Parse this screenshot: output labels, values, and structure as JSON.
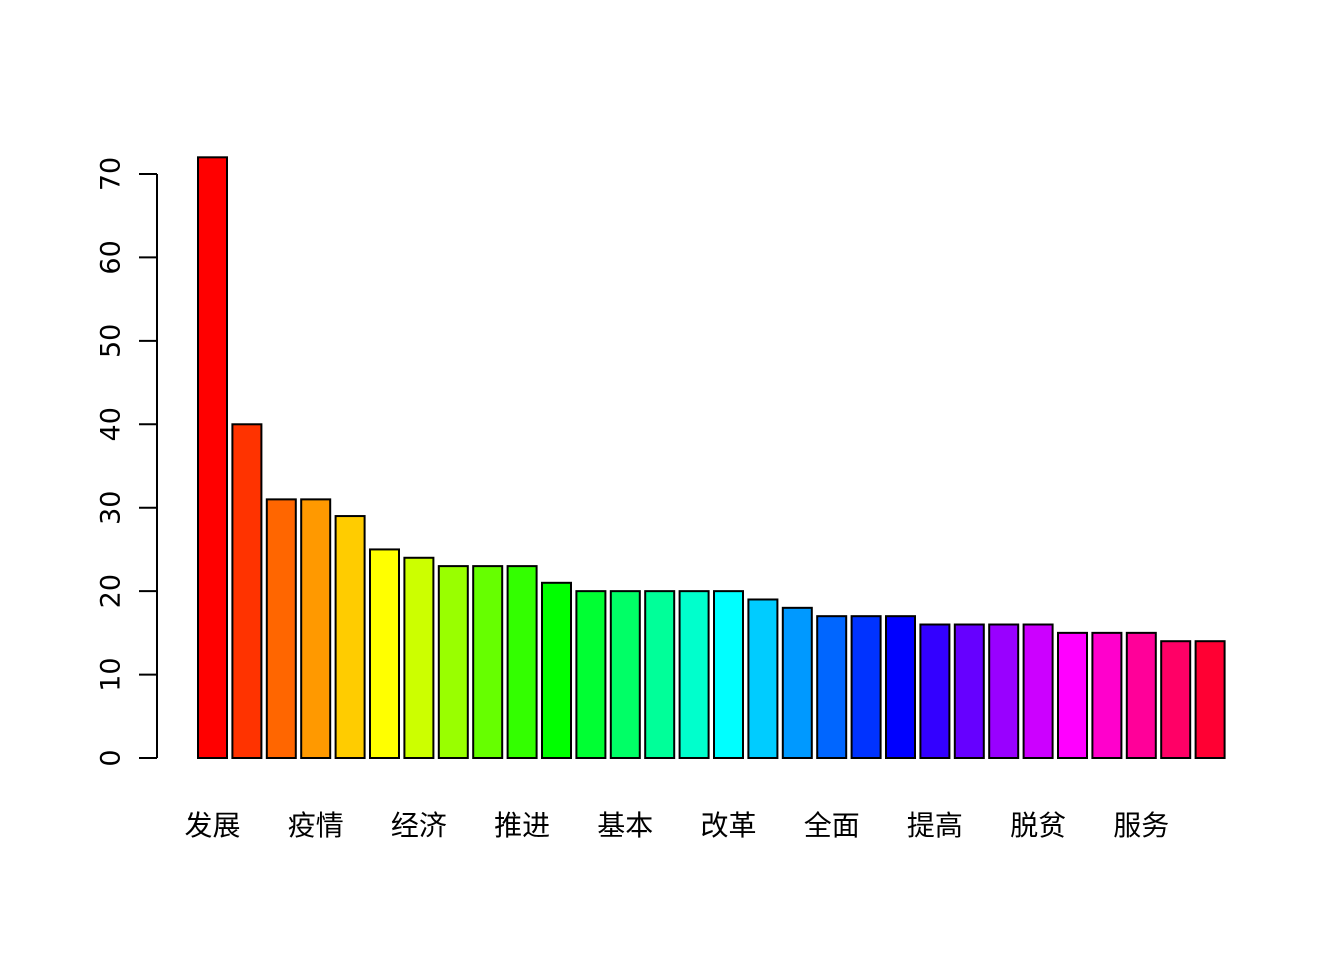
{
  "chart_data": {
    "type": "bar",
    "title": "",
    "xlabel": "",
    "ylabel": "",
    "ylim": [
      0,
      72
    ],
    "y_ticks": [
      0,
      10,
      20,
      30,
      40,
      50,
      60,
      70
    ],
    "x_tick_labels": [
      "发展",
      "疫情",
      "经济",
      "推进",
      "基本",
      "改革",
      "全面",
      "提高",
      "脱贫",
      "服务"
    ],
    "x_tick_label_every": 3,
    "values": [
      72,
      40,
      31,
      31,
      29,
      25,
      24,
      23,
      23,
      23,
      21,
      20,
      20,
      20,
      20,
      20,
      19,
      18,
      17,
      17,
      17,
      16,
      16,
      16,
      16,
      15,
      15,
      15,
      14,
      14
    ],
    "colors": [
      "#FF0000",
      "#FF3300",
      "#FF6600",
      "#FF9900",
      "#FFCC00",
      "#FFFF00",
      "#CCFF00",
      "#99FF00",
      "#66FF00",
      "#33FF00",
      "#00FF00",
      "#00FF33",
      "#00FF66",
      "#00FF99",
      "#00FFCC",
      "#00FFFF",
      "#00CCFF",
      "#0099FF",
      "#0066FF",
      "#0033FF",
      "#0000FF",
      "#3300FF",
      "#6600FF",
      "#9900FF",
      "#CC00FF",
      "#FF00FF",
      "#FF00CC",
      "#FF0099",
      "#FF0066",
      "#FF0033"
    ],
    "grid": false,
    "legend": "none"
  }
}
